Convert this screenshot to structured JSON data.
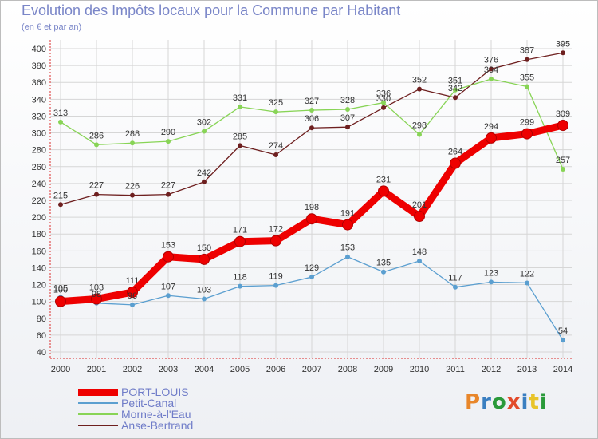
{
  "header": {
    "title": "Evolution des Impôts locaux pour la Commune par Habitant",
    "subtitle": "(en € et par an)"
  },
  "chart_data": {
    "type": "line",
    "title": "Evolution des Impôts locaux pour la Commune par Habitant",
    "subtitle": "(en € et par an)",
    "xlabel": "",
    "ylabel": "",
    "ylim": [
      40,
      400
    ],
    "yticks": [
      40,
      60,
      80,
      100,
      120,
      140,
      160,
      180,
      200,
      220,
      240,
      260,
      280,
      300,
      320,
      340,
      360,
      380,
      400
    ],
    "categories": [
      "2000",
      "2001",
      "2002",
      "2003",
      "2004",
      "2005",
      "2006",
      "2007",
      "2008",
      "2009",
      "2010",
      "2011",
      "2012",
      "2013",
      "2014"
    ],
    "grid": true,
    "legend_position": "bottom-left",
    "series": [
      {
        "name": "Anse-Bertrand",
        "color": "#6e1f1f",
        "values": [
          215,
          227,
          226,
          227,
          242,
          285,
          274,
          306,
          307,
          330,
          352,
          342,
          376,
          387,
          395
        ]
      },
      {
        "name": "Morne-à-l'Eau",
        "color": "#88d456",
        "values": [
          313,
          286,
          288,
          290,
          302,
          331,
          325,
          327,
          328,
          336,
          298,
          351,
          364,
          355,
          257
        ]
      },
      {
        "name": "Petit-Canal",
        "color": "#5b9fd0",
        "values": [
          105,
          98,
          96,
          107,
          103,
          118,
          119,
          129,
          153,
          135,
          148,
          117,
          123,
          122,
          54
        ]
      },
      {
        "name": "PORT-LOUIS",
        "color": "#ee0000",
        "values": [
          100,
          103,
          111,
          153,
          150,
          171,
          172,
          198,
          191,
          231,
          201,
          264,
          294,
          299,
          309
        ]
      }
    ]
  },
  "legend": {
    "items": [
      {
        "label": "PORT-LOUIS",
        "color": "#ee0000"
      },
      {
        "label": "Petit-Canal",
        "color": "#5b9fd0"
      },
      {
        "label": "Morne-à-l'Eau",
        "color": "#88d456"
      },
      {
        "label": "Anse-Bertrand",
        "color": "#6e1f1f"
      }
    ]
  },
  "brand": {
    "logo_text": "Proxiti",
    "letter_colors": [
      "#e8862a",
      "#3a7fc1",
      "#2a9a3a",
      "#e24a2a",
      "#3a7fc1",
      "#e8c42a",
      "#2a9a3a"
    ]
  }
}
